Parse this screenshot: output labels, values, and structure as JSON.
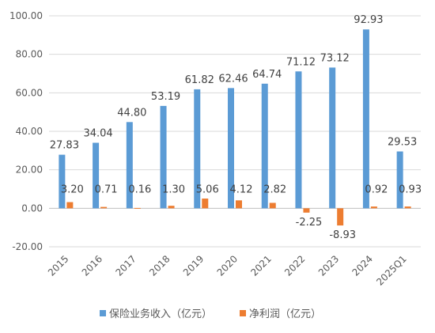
{
  "chart_data": {
    "type": "bar",
    "title": "",
    "xlabel": "",
    "ylabel": "",
    "categories": [
      "2015",
      "2016",
      "2017",
      "2018",
      "2019",
      "2020",
      "2021",
      "2022",
      "2023",
      "2024",
      "2025Q1"
    ],
    "series": [
      {
        "name": "保险业务收入（亿元）",
        "color": "#5B9BD5",
        "values": [
          27.83,
          34.04,
          44.8,
          53.19,
          61.82,
          62.46,
          64.74,
          71.12,
          73.12,
          92.93,
          29.53
        ],
        "labels": [
          "27.83",
          "34.04",
          "44.80",
          "53.19",
          "61.82",
          "62.46",
          "64.74",
          "71.12",
          "73.12",
          "92.93",
          "29.53"
        ]
      },
      {
        "name": "净利润（亿元）",
        "color": "#ED7D31",
        "values": [
          3.2,
          0.71,
          0.16,
          1.3,
          5.06,
          4.12,
          2.82,
          -2.25,
          -8.93,
          0.92,
          0.93
        ],
        "labels": [
          "3.20",
          "0.71",
          "0.16",
          "1.30",
          "5.06",
          "4.12",
          "2.82",
          "-2.25",
          "-8.93",
          "0.92",
          "0.93"
        ]
      }
    ],
    "ylim": [
      -20,
      100
    ],
    "yticks": [
      "100.00",
      "80.00",
      "60.00",
      "40.00",
      "20.00",
      "0.00",
      "-20.00"
    ],
    "ytick_values": [
      100,
      80,
      60,
      40,
      20,
      0,
      -20
    ],
    "grid": true,
    "legend": "bottom"
  }
}
